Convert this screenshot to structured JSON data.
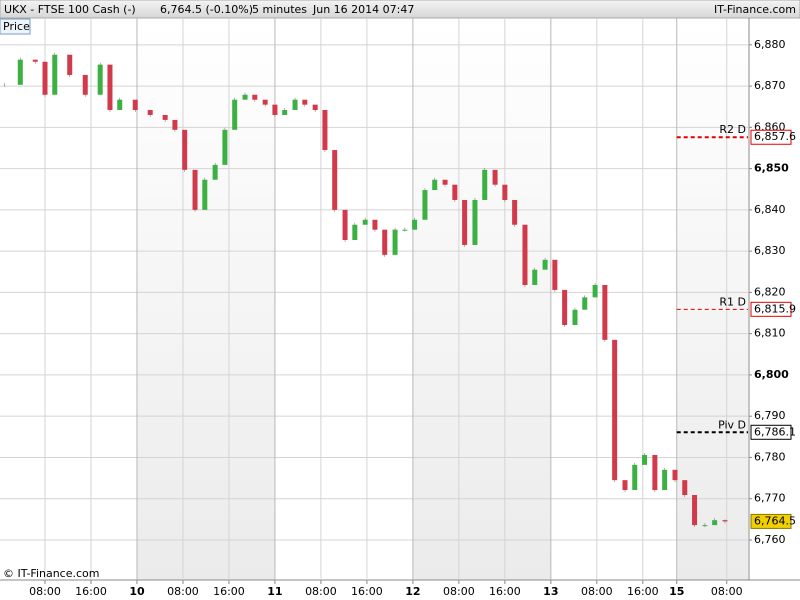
{
  "header": {
    "instrument": "UKX - FTSE 100 Cash (-)",
    "quote": "6,764.5 (-0.10%)",
    "interval": "5 minutes",
    "timestamp": "Jun 16 2014 07:47",
    "brand": "IT-Finance.com"
  },
  "panel_label": "Price",
  "copyright": "© IT-Finance.com",
  "chart_data": {
    "type": "candlestick",
    "up_color": "#3cb043",
    "down_color": "#d03a4a",
    "x": [
      1.0,
      3.7,
      6.3,
      8.0,
      9.7,
      12.3,
      15.0,
      17.6,
      19.3,
      21.0,
      23.7,
      26.3,
      28.9,
      30.6,
      32.3,
      34.1,
      35.8,
      37.6,
      39.3,
      41.0,
      42.8,
      44.5,
      46.3,
      48.0,
      49.7,
      51.5,
      53.2,
      55.0,
      56.7,
      58.4,
      60.2,
      61.9,
      63.7,
      65.4,
      67.1,
      68.9,
      70.6,
      72.3,
      74.1,
      75.8,
      77.6,
      79.3,
      81.0,
      82.8,
      84.5,
      86.3,
      88.0,
      89.7,
      91.5,
      93.2,
      95.0,
      96.7,
      98.4,
      100.2,
      101.9,
      103.7,
      105.4,
      107.1,
      108.9,
      110.6,
      112.3,
      114.1,
      115.8,
      117.6,
      119.3,
      121.0,
      122.8,
      124.5,
      126.3
    ],
    "values": [
      6870.3,
      6876.4,
      6875.9,
      6867.9,
      6877.6,
      6872.7,
      6867.9,
      6875.2,
      6864.2,
      6866.7,
      6864.2,
      6863.0,
      6861.8,
      6859.4,
      6849.7,
      6840.0,
      6847.3,
      6850.9,
      6859.4,
      6866.7,
      6867.9,
      6866.7,
      6865.5,
      6863.0,
      6864.2,
      6866.7,
      6865.5,
      6864.2,
      6854.5,
      6840.0,
      6832.7,
      6836.4,
      6837.6,
      6835.2,
      6829.1,
      6835.2,
      6835.2,
      6837.6,
      6844.8,
      6847.3,
      6846.1,
      6842.4,
      6831.5,
      6842.4,
      6849.7,
      6846.1,
      6842.4,
      6836.4,
      6821.8,
      6825.5,
      6827.9,
      6820.6,
      6812.1,
      6815.8,
      6818.8,
      6821.8,
      6808.5,
      6774.5,
      6772.1,
      6778.2,
      6780.6,
      6772.1,
      6777.0,
      6774.5,
      6770.9,
      6763.6,
      6763.6,
      6764.8,
      6764.5
    ],
    "xlim": [
      0.17,
      130.3
    ],
    "xticks": [
      {
        "value": 8,
        "label": "08:00"
      },
      {
        "value": 16,
        "label": "16:00"
      },
      {
        "value": 24,
        "label": "10",
        "major": true
      },
      {
        "value": 32,
        "label": "08:00"
      },
      {
        "value": 40,
        "label": "16:00"
      },
      {
        "value": 48,
        "label": "11",
        "major": true
      },
      {
        "value": 56,
        "label": "08:00"
      },
      {
        "value": 64,
        "label": "16:00"
      },
      {
        "value": 72,
        "label": "12",
        "major": true
      },
      {
        "value": 80,
        "label": "08:00"
      },
      {
        "value": 88,
        "label": "16:00"
      },
      {
        "value": 96,
        "label": "13",
        "major": true
      },
      {
        "value": 104,
        "label": "08:00"
      },
      {
        "value": 112,
        "label": "16:00"
      },
      {
        "value": 117.9,
        "label": "15",
        "major": true
      },
      {
        "value": 126.6,
        "label": "08:00"
      }
    ],
    "ylim": [
      6750.3,
      6886.5
    ],
    "yticks": [
      {
        "value": 6760,
        "label": "6,760"
      },
      {
        "value": 6770,
        "label": "6,770"
      },
      {
        "value": 6780,
        "label": "6,780"
      },
      {
        "value": 6790,
        "label": "6,790"
      },
      {
        "value": 6800,
        "label": "6,800",
        "bold": true
      },
      {
        "value": 6810,
        "label": "6,810"
      },
      {
        "value": 6820,
        "label": "6,820"
      },
      {
        "value": 6830,
        "label": "6,830"
      },
      {
        "value": 6840,
        "label": "6,840"
      },
      {
        "value": 6850,
        "label": "6,850",
        "bold": true
      },
      {
        "value": 6860,
        "label": "6,860"
      },
      {
        "value": 6870,
        "label": "6,870"
      },
      {
        "value": 6880,
        "label": "6,880"
      }
    ],
    "grid": true,
    "levels": [
      {
        "name": "R2 D",
        "value": 6857.6,
        "value_label": "6,857.6",
        "color": "#e00000",
        "width": 2
      },
      {
        "name": "R1 D",
        "value": 6815.9,
        "value_label": "6,815.9",
        "color": "#e00000",
        "width": 1
      },
      {
        "name": "Piv D",
        "value": 6786.1,
        "value_label": "6,786.1",
        "color": "#000000",
        "width": 2
      }
    ],
    "last": {
      "value": 6764.5,
      "value_label": "6,764.5",
      "color": "#f0d000"
    }
  }
}
